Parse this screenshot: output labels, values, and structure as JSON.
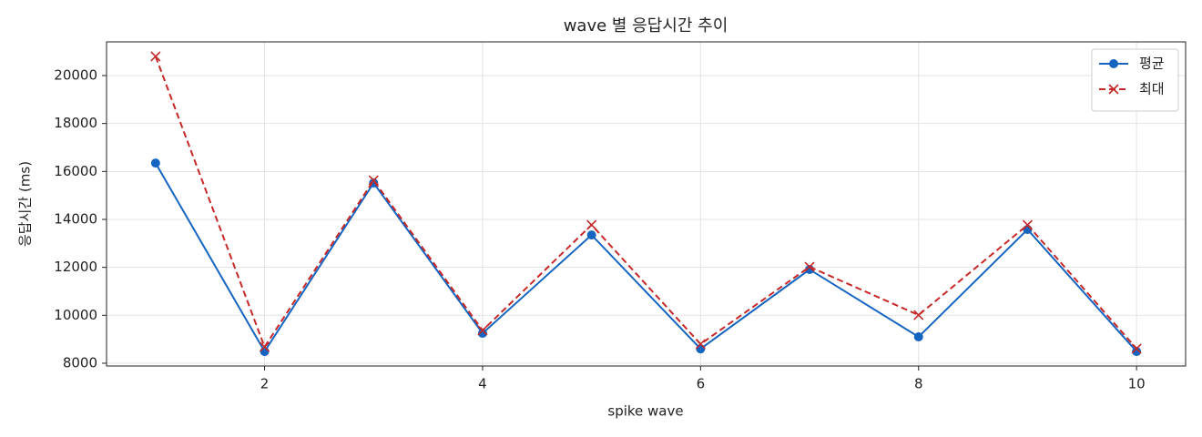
{
  "chart_data": {
    "type": "line",
    "title": "wave 별 응답시간 추이",
    "x_label": "spike wave",
    "y_label": "응답시간 (ms)",
    "x": [
      1,
      2,
      3,
      4,
      5,
      6,
      7,
      8,
      9,
      10
    ],
    "series": [
      {
        "name": "평균",
        "color": "#1565c0",
        "marker": "circle",
        "dashed": false,
        "values": [
          16350,
          8490,
          15520,
          9250,
          13350,
          8600,
          11910,
          9100,
          13580,
          8490
        ]
      },
      {
        "name": "최대",
        "color": "#c62828",
        "marker": "x",
        "dashed": true,
        "values": [
          20800,
          8680,
          15630,
          9370,
          13770,
          8800,
          12020,
          10010,
          13770,
          8610
        ]
      }
    ],
    "xlim": [
      0.55,
      10.45
    ],
    "ylim": [
      7885,
      21405
    ],
    "xticks": [
      2,
      4,
      6,
      8,
      10
    ],
    "yticks": [
      8000,
      10000,
      12000,
      14000,
      16000,
      18000,
      20000
    ],
    "grid": true,
    "legend": "upper right"
  }
}
